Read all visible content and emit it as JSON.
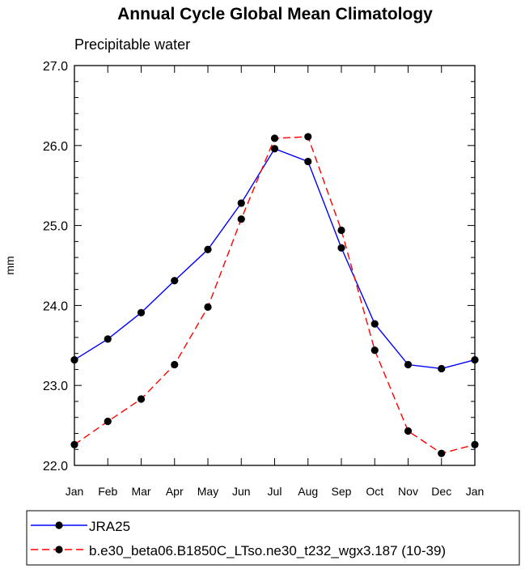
{
  "chart_data": {
    "type": "line",
    "title": "Annual Cycle Global Mean Climatology",
    "subtitle": "Precipitable water",
    "xlabel": "",
    "ylabel": "mm",
    "categories": [
      "Jan",
      "Feb",
      "Mar",
      "Apr",
      "May",
      "Jun",
      "Jul",
      "Aug",
      "Sep",
      "Oct",
      "Nov",
      "Dec",
      "Jan"
    ],
    "ylim": [
      22.0,
      27.0
    ],
    "yticks": [
      "22.0",
      "23.0",
      "24.0",
      "25.0",
      "26.0",
      "27.0"
    ],
    "grid": false,
    "legend_position": "bottom",
    "series": [
      {
        "name": "JRA25",
        "color": "#0000ff",
        "dash": "solid",
        "marker": "filled-circle",
        "values": [
          23.32,
          23.58,
          23.91,
          24.31,
          24.7,
          25.28,
          25.96,
          25.8,
          24.72,
          23.77,
          23.26,
          23.21,
          23.32
        ]
      },
      {
        "name": "b.e30_beta06.B1850C_LTso.ne30_t232_wgx3.187 (10-39)",
        "color": "#ff0000",
        "dash": "dashed",
        "marker": "filled-circle",
        "values": [
          22.26,
          22.55,
          22.83,
          23.26,
          23.98,
          25.08,
          26.09,
          26.11,
          24.94,
          23.44,
          22.43,
          22.15,
          22.26
        ]
      }
    ]
  }
}
